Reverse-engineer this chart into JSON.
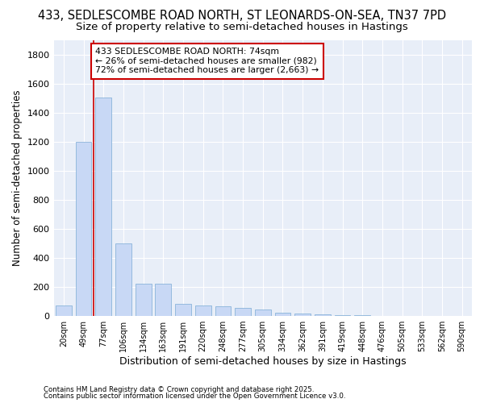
{
  "title1": "433, SEDLESCOMBE ROAD NORTH, ST LEONARDS-ON-SEA, TN37 7PD",
  "title2": "Size of property relative to semi-detached houses in Hastings",
  "xlabel": "Distribution of semi-detached houses by size in Hastings",
  "ylabel": "Number of semi-detached properties",
  "categories": [
    "20sqm",
    "49sqm",
    "77sqm",
    "106sqm",
    "134sqm",
    "163sqm",
    "191sqm",
    "220sqm",
    "248sqm",
    "277sqm",
    "305sqm",
    "334sqm",
    "362sqm",
    "391sqm",
    "419sqm",
    "448sqm",
    "476sqm",
    "505sqm",
    "533sqm",
    "562sqm",
    "590sqm"
  ],
  "values": [
    75,
    1200,
    1505,
    500,
    225,
    225,
    85,
    75,
    65,
    55,
    45,
    25,
    18,
    12,
    8,
    5,
    3,
    3,
    3,
    3,
    3
  ],
  "bar_color": "#c8d8f5",
  "bar_edge_color": "#7baad4",
  "highlight_index": 2,
  "highlight_color": "#cc0000",
  "ylim": [
    0,
    1900
  ],
  "yticks": [
    0,
    200,
    400,
    600,
    800,
    1000,
    1200,
    1400,
    1600,
    1800
  ],
  "annotation_title": "433 SEDLESCOMBE ROAD NORTH: 74sqm",
  "annotation_line1": "← 26% of semi-detached houses are smaller (982)",
  "annotation_line2": "72% of semi-detached houses are larger (2,663) →",
  "annotation_box_color": "#ffffff",
  "annotation_box_edge": "#cc0000",
  "background_color": "#ffffff",
  "plot_bg_color": "#e8eef8",
  "grid_color": "#ffffff",
  "footer1": "Contains HM Land Registry data © Crown copyright and database right 2025.",
  "footer2": "Contains public sector information licensed under the Open Government Licence v3.0.",
  "title_fontsize": 10.5,
  "subtitle_fontsize": 9.5
}
